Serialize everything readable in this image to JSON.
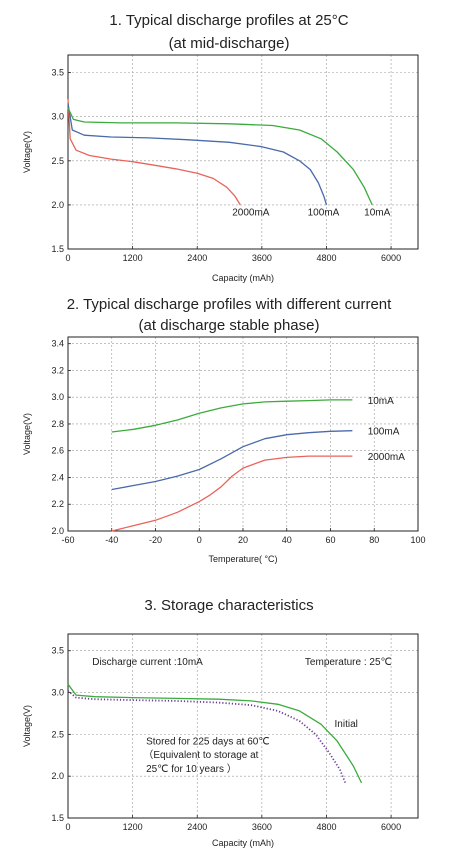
{
  "chart_data": [
    {
      "type": "line",
      "title": "1. Typical discharge profiles at 25°C",
      "subtitle": "(at mid-discharge)",
      "xlabel": "Capacity (mAh)",
      "ylabel": "Voltage(V)",
      "xlim": [
        0,
        6500
      ],
      "ylim": [
        1.5,
        3.7
      ],
      "xticks": [
        "0",
        "1200",
        "2400",
        "3600",
        "4800",
        "6000"
      ],
      "xtick_values": [
        0,
        1200,
        2400,
        3600,
        4800,
        6000
      ],
      "yticks": [
        "1.5",
        "2.0",
        "2.5",
        "3.0",
        "3.5"
      ],
      "ytick_values": [
        1.5,
        2.0,
        2.5,
        3.0,
        3.5
      ],
      "grid": "dashed",
      "series": [
        {
          "name": "2000mA",
          "color": "#e8645a",
          "points": [
            [
              0,
              3.2
            ],
            [
              40,
              2.75
            ],
            [
              150,
              2.62
            ],
            [
              400,
              2.56
            ],
            [
              800,
              2.52
            ],
            [
              1200,
              2.49
            ],
            [
              1600,
              2.45
            ],
            [
              2000,
              2.41
            ],
            [
              2400,
              2.36
            ],
            [
              2700,
              2.3
            ],
            [
              2950,
              2.2
            ],
            [
              3100,
              2.1
            ],
            [
              3200,
              2.0
            ]
          ]
        },
        {
          "name": "100mA",
          "color": "#4a6aaa",
          "points": [
            [
              0,
              3.15
            ],
            [
              80,
              2.85
            ],
            [
              300,
              2.79
            ],
            [
              800,
              2.77
            ],
            [
              1500,
              2.76
            ],
            [
              2200,
              2.74
            ],
            [
              3000,
              2.71
            ],
            [
              3600,
              2.66
            ],
            [
              4000,
              2.6
            ],
            [
              4300,
              2.5
            ],
            [
              4500,
              2.4
            ],
            [
              4650,
              2.25
            ],
            [
              4750,
              2.1
            ],
            [
              4800,
              2.0
            ]
          ]
        },
        {
          "name": "10mA",
          "color": "#3cab3c",
          "points": [
            [
              0,
              3.1
            ],
            [
              100,
              2.97
            ],
            [
              300,
              2.94
            ],
            [
              1000,
              2.93
            ],
            [
              2000,
              2.93
            ],
            [
              3000,
              2.92
            ],
            [
              3800,
              2.9
            ],
            [
              4300,
              2.85
            ],
            [
              4700,
              2.75
            ],
            [
              5000,
              2.6
            ],
            [
              5300,
              2.4
            ],
            [
              5500,
              2.2
            ],
            [
              5650,
              2.0
            ]
          ]
        }
      ],
      "labels": [
        {
          "text": "2000mA",
          "x": 3050,
          "y": 1.88
        },
        {
          "text": "100mA",
          "x": 4450,
          "y": 1.88
        },
        {
          "text": "10mA",
          "x": 5500,
          "y": 1.88
        }
      ]
    },
    {
      "type": "line",
      "title": "2. Typical discharge profiles with different current",
      "subtitle": "(at discharge stable phase)",
      "xlabel": "Temperature( °C)",
      "ylabel": "Voltage(V)",
      "xlim": [
        -60,
        100
      ],
      "ylim": [
        2.0,
        3.45
      ],
      "xticks": [
        "-60",
        "-40",
        "-20",
        "0",
        "20",
        "40",
        "60",
        "80",
        "100"
      ],
      "xtick_values": [
        -60,
        -40,
        -20,
        0,
        20,
        40,
        60,
        80,
        100
      ],
      "yticks": [
        "2.0",
        "2.2",
        "2.4",
        "2.6",
        "2.8",
        "3.0",
        "3.2",
        "3.4"
      ],
      "ytick_values": [
        2.0,
        2.2,
        2.4,
        2.6,
        2.8,
        3.0,
        3.2,
        3.4
      ],
      "grid": "dashed",
      "series": [
        {
          "name": "10mA",
          "color": "#3cab3c",
          "points": [
            [
              -40,
              2.74
            ],
            [
              -30,
              2.76
            ],
            [
              -20,
              2.79
            ],
            [
              -10,
              2.83
            ],
            [
              0,
              2.88
            ],
            [
              10,
              2.92
            ],
            [
              20,
              2.95
            ],
            [
              30,
              2.965
            ],
            [
              40,
              2.97
            ],
            [
              50,
              2.975
            ],
            [
              60,
              2.98
            ],
            [
              70,
              2.98
            ]
          ]
        },
        {
          "name": "100mA",
          "color": "#4a6aaa",
          "points": [
            [
              -40,
              2.31
            ],
            [
              -30,
              2.34
            ],
            [
              -20,
              2.37
            ],
            [
              -10,
              2.41
            ],
            [
              0,
              2.46
            ],
            [
              10,
              2.54
            ],
            [
              20,
              2.63
            ],
            [
              30,
              2.69
            ],
            [
              40,
              2.72
            ],
            [
              50,
              2.735
            ],
            [
              60,
              2.745
            ],
            [
              70,
              2.75
            ]
          ]
        },
        {
          "name": "2000mA",
          "color": "#e8645a",
          "points": [
            [
              -40,
              2.0
            ],
            [
              -30,
              2.04
            ],
            [
              -20,
              2.08
            ],
            [
              -10,
              2.14
            ],
            [
              0,
              2.22
            ],
            [
              5,
              2.27
            ],
            [
              10,
              2.33
            ],
            [
              15,
              2.41
            ],
            [
              20,
              2.47
            ],
            [
              30,
              2.53
            ],
            [
              40,
              2.55
            ],
            [
              50,
              2.56
            ],
            [
              60,
              2.56
            ],
            [
              70,
              2.56
            ]
          ]
        }
      ],
      "labels": [
        {
          "text": "10mA",
          "x": 77,
          "y": 2.95
        },
        {
          "text": "100mA",
          "x": 77,
          "y": 2.72
        },
        {
          "text": "2000mA",
          "x": 77,
          "y": 2.53
        }
      ]
    },
    {
      "type": "line",
      "title": "3. Storage characteristics",
      "xlabel": "Capacity (mAh)",
      "ylabel": "Voltage(V)",
      "xlim": [
        0,
        6500
      ],
      "ylim": [
        1.5,
        3.7
      ],
      "xticks": [
        "0",
        "1200",
        "2400",
        "3600",
        "4800",
        "6000"
      ],
      "xtick_values": [
        0,
        1200,
        2400,
        3600,
        4800,
        6000
      ],
      "yticks": [
        "1.5",
        "2.0",
        "2.5",
        "3.0",
        "3.5"
      ],
      "ytick_values": [
        1.5,
        2.0,
        2.5,
        3.0,
        3.5
      ],
      "grid": "dashed",
      "series": [
        {
          "name": "Initial",
          "color": "#3cab3c",
          "style": "solid",
          "points": [
            [
              0,
              3.1
            ],
            [
              150,
              2.97
            ],
            [
              500,
              2.95
            ],
            [
              1200,
              2.94
            ],
            [
              2000,
              2.93
            ],
            [
              2800,
              2.92
            ],
            [
              3400,
              2.9
            ],
            [
              3900,
              2.86
            ],
            [
              4300,
              2.78
            ],
            [
              4700,
              2.62
            ],
            [
              5000,
              2.42
            ],
            [
              5300,
              2.12
            ],
            [
              5450,
              1.92
            ]
          ]
        },
        {
          "name": "Stored",
          "color": "#6a3a9a",
          "style": "dotted",
          "points": [
            [
              0,
              3.02
            ],
            [
              150,
              2.94
            ],
            [
              500,
              2.92
            ],
            [
              1200,
              2.91
            ],
            [
              2000,
              2.9
            ],
            [
              2800,
              2.88
            ],
            [
              3400,
              2.85
            ],
            [
              3900,
              2.78
            ],
            [
              4300,
              2.66
            ],
            [
              4600,
              2.5
            ],
            [
              4850,
              2.28
            ],
            [
              5050,
              2.08
            ],
            [
              5150,
              1.92
            ]
          ]
        }
      ],
      "annotations": [
        {
          "text": "Discharge current :10mA",
          "x": 450,
          "y": 3.33
        },
        {
          "text": "Temperature : 25℃",
          "x": 4400,
          "y": 3.33
        },
        {
          "text": "Initial",
          "x": 4950,
          "y": 2.59
        },
        {
          "text": "Stored for 225 days at 60℃",
          "x": 1450,
          "y": 2.38
        },
        {
          "text": "（Equivalent to storage at",
          "x": 1400,
          "y": 2.22
        },
        {
          "text": "25℃ for 10 years ）",
          "x": 1450,
          "y": 2.05
        }
      ]
    }
  ]
}
